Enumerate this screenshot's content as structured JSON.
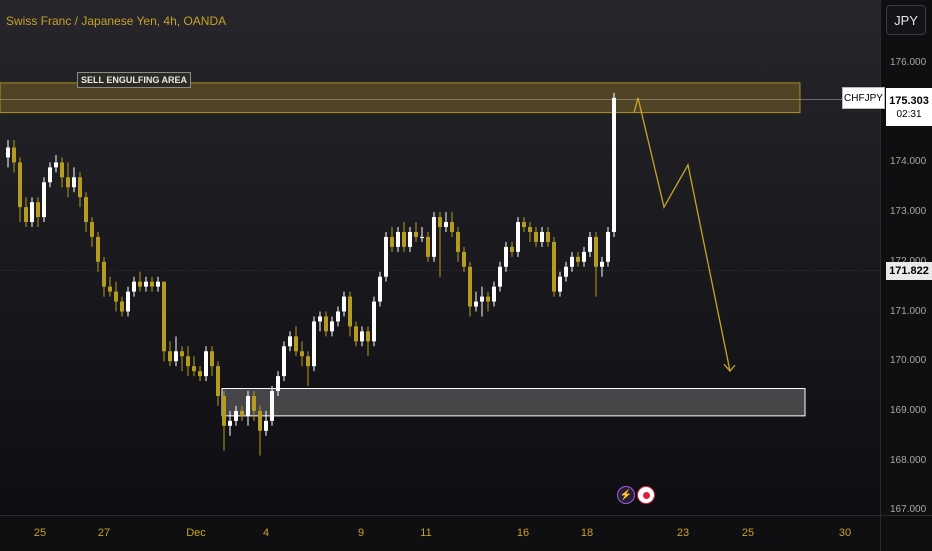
{
  "header": {
    "symbol_title": "Swiss Franc / Japanese Yen, 4h, OANDA",
    "currency_button": "JPY"
  },
  "annotations": {
    "sell_zone_label": "SELL ENGULFING AREA"
  },
  "price_axis": {
    "ticks": [
      {
        "label": "176.000",
        "value": 176
      },
      {
        "label": "175.000",
        "value": 175
      },
      {
        "label": "174.000",
        "value": 174
      },
      {
        "label": "173.000",
        "value": 173
      },
      {
        "label": "172.000",
        "value": 172
      },
      {
        "label": "171.000",
        "value": 171
      },
      {
        "label": "170.000",
        "value": 170
      },
      {
        "label": "169.000",
        "value": 169
      },
      {
        "label": "168.000",
        "value": 168
      },
      {
        "label": "167.000",
        "value": 167
      }
    ]
  },
  "time_axis": {
    "ticks": [
      "25",
      "27",
      "Dec",
      "4",
      "9",
      "11",
      "16",
      "18",
      "23",
      "25",
      "30"
    ]
  },
  "price_marker": {
    "symbol": "CHFJPY",
    "price": "175.303",
    "countdown": "02:31"
  },
  "close_marker": {
    "price": "171.822"
  },
  "colors": {
    "bull": "#ffffff",
    "bear": "#b59b22",
    "projection": "#c9a227",
    "sell_zone": "#c9a227",
    "buy_zone": "#ffffff"
  },
  "events": {
    "flash_icon": "lightning-icon",
    "record_icon": "record-icon"
  },
  "chart_data": {
    "type": "candlestick",
    "symbol": "CHFJPY",
    "timeframe": "4h",
    "ylim": [
      167,
      176.4
    ],
    "x_labels": [
      "25",
      "27",
      "Dec",
      "4",
      "9",
      "11",
      "16",
      "18",
      "23",
      "25",
      "30"
    ],
    "zones": [
      {
        "name": "SELL ENGULFING AREA",
        "low": 175.0,
        "high": 175.6
      },
      {
        "name": "demand",
        "low": 168.9,
        "high": 169.45
      }
    ],
    "projection_path": [
      175.0,
      175.3,
      173.1,
      173.95,
      169.8
    ],
    "last_price": 175.303,
    "close_line": 171.822,
    "candles": [
      [
        174.1,
        174.3,
        174.45,
        173.9
      ],
      [
        174.3,
        174.0,
        174.45,
        173.8
      ],
      [
        174.0,
        173.1,
        174.1,
        172.8
      ],
      [
        173.1,
        172.8,
        173.3,
        172.7
      ],
      [
        172.8,
        173.2,
        173.3,
        172.7
      ],
      [
        173.2,
        172.9,
        173.3,
        172.7
      ],
      [
        172.9,
        173.6,
        173.7,
        172.8
      ],
      [
        173.6,
        173.9,
        174.0,
        173.5
      ],
      [
        173.9,
        174.0,
        174.15,
        173.8
      ],
      [
        174.0,
        173.7,
        174.1,
        173.5
      ],
      [
        173.7,
        173.5,
        174.0,
        173.3
      ],
      [
        173.5,
        173.7,
        173.9,
        173.4
      ],
      [
        173.7,
        173.3,
        173.8,
        173.1
      ],
      [
        173.3,
        172.8,
        173.4,
        172.6
      ],
      [
        172.8,
        172.5,
        172.9,
        172.3
      ],
      [
        172.5,
        172.0,
        172.6,
        171.8
      ],
      [
        172.0,
        171.5,
        172.1,
        171.3
      ],
      [
        171.5,
        171.4,
        171.7,
        171.3
      ],
      [
        171.4,
        171.2,
        171.6,
        171.0
      ],
      [
        171.2,
        171.0,
        171.3,
        170.9
      ],
      [
        171.0,
        171.4,
        171.5,
        170.9
      ],
      [
        171.4,
        171.6,
        171.7,
        171.3
      ],
      [
        171.6,
        171.5,
        171.8,
        171.4
      ],
      [
        171.5,
        171.6,
        171.7,
        171.4
      ],
      [
        171.6,
        171.5,
        171.7,
        171.4
      ],
      [
        171.5,
        171.6,
        171.7,
        171.4
      ],
      [
        171.6,
        170.2,
        171.6,
        170.0
      ],
      [
        170.2,
        170.0,
        170.4,
        169.9
      ],
      [
        170.0,
        170.2,
        170.5,
        169.9
      ],
      [
        170.2,
        170.1,
        170.3,
        169.8
      ],
      [
        170.1,
        169.9,
        170.3,
        169.7
      ],
      [
        169.9,
        169.8,
        170.1,
        169.7
      ],
      [
        169.8,
        169.7,
        169.9,
        169.6
      ],
      [
        169.7,
        170.2,
        170.3,
        169.6
      ],
      [
        170.2,
        169.9,
        170.3,
        169.7
      ],
      [
        169.9,
        169.3,
        170.0,
        169.1
      ],
      [
        169.3,
        168.7,
        169.4,
        168.2
      ],
      [
        168.7,
        168.8,
        169.0,
        168.5
      ],
      [
        168.8,
        169.0,
        169.1,
        168.7
      ],
      [
        169.0,
        168.9,
        169.1,
        168.8
      ],
      [
        168.9,
        169.3,
        169.4,
        168.7
      ],
      [
        169.3,
        169.0,
        169.4,
        168.8
      ],
      [
        169.0,
        168.6,
        169.1,
        168.1
      ],
      [
        168.6,
        168.8,
        169.0,
        168.5
      ],
      [
        168.8,
        169.4,
        169.5,
        168.7
      ],
      [
        169.4,
        169.7,
        169.8,
        169.3
      ],
      [
        169.7,
        170.3,
        170.4,
        169.6
      ],
      [
        170.3,
        170.5,
        170.6,
        170.2
      ],
      [
        170.5,
        170.2,
        170.7,
        170.1
      ],
      [
        170.2,
        170.1,
        170.4,
        169.9
      ],
      [
        170.1,
        169.9,
        170.2,
        169.5
      ],
      [
        169.9,
        170.8,
        170.9,
        169.8
      ],
      [
        170.8,
        170.9,
        171.0,
        170.6
      ],
      [
        170.9,
        170.6,
        171.0,
        170.5
      ],
      [
        170.6,
        170.8,
        170.9,
        170.5
      ],
      [
        170.8,
        171.0,
        171.1,
        170.7
      ],
      [
        171.0,
        171.3,
        171.4,
        170.9
      ],
      [
        171.3,
        170.7,
        171.4,
        170.5
      ],
      [
        170.7,
        170.4,
        170.8,
        170.3
      ],
      [
        170.4,
        170.6,
        170.7,
        170.3
      ],
      [
        170.6,
        170.4,
        170.7,
        170.1
      ],
      [
        170.4,
        171.2,
        171.3,
        170.3
      ],
      [
        171.2,
        171.7,
        171.8,
        171.1
      ],
      [
        171.7,
        172.5,
        172.6,
        171.6
      ],
      [
        172.5,
        172.3,
        172.7,
        172.2
      ],
      [
        172.3,
        172.6,
        172.7,
        172.2
      ],
      [
        172.6,
        172.3,
        172.8,
        172.2
      ],
      [
        172.3,
        172.6,
        172.7,
        172.2
      ],
      [
        172.6,
        172.5,
        172.8,
        172.4
      ],
      [
        172.5,
        172.5,
        172.7,
        172.4
      ],
      [
        172.5,
        172.1,
        172.6,
        172.0
      ],
      [
        172.1,
        172.9,
        173.0,
        172.0
      ],
      [
        172.9,
        172.7,
        173.0,
        171.7
      ],
      [
        172.7,
        172.8,
        173.0,
        172.6
      ],
      [
        172.8,
        172.6,
        173.0,
        172.5
      ],
      [
        172.6,
        172.2,
        172.7,
        172.0
      ],
      [
        172.2,
        171.9,
        172.3,
        171.8
      ],
      [
        171.9,
        171.1,
        172.0,
        170.9
      ],
      [
        171.1,
        171.2,
        171.4,
        171.0
      ],
      [
        171.2,
        171.3,
        171.5,
        170.9
      ],
      [
        171.3,
        171.2,
        171.4,
        171.0
      ],
      [
        171.2,
        171.5,
        171.6,
        171.1
      ],
      [
        171.5,
        171.9,
        172.0,
        171.4
      ],
      [
        171.9,
        172.3,
        172.4,
        171.8
      ],
      [
        172.3,
        172.2,
        172.4,
        172.1
      ],
      [
        172.2,
        172.8,
        172.9,
        172.1
      ],
      [
        172.8,
        172.7,
        172.9,
        172.6
      ],
      [
        172.7,
        172.6,
        172.8,
        172.4
      ],
      [
        172.6,
        172.4,
        172.7,
        172.3
      ],
      [
        172.4,
        172.6,
        172.7,
        172.3
      ],
      [
        172.6,
        172.4,
        172.7,
        172.3
      ],
      [
        172.4,
        171.4,
        172.5,
        171.3
      ],
      [
        171.4,
        171.7,
        171.8,
        171.3
      ],
      [
        171.7,
        171.9,
        172.0,
        171.6
      ],
      [
        171.9,
        172.1,
        172.2,
        171.8
      ],
      [
        172.1,
        172.0,
        172.2,
        171.9
      ],
      [
        172.0,
        172.2,
        172.3,
        171.9
      ],
      [
        172.2,
        172.5,
        172.6,
        172.1
      ],
      [
        172.5,
        171.9,
        172.6,
        171.3
      ],
      [
        171.9,
        172.0,
        172.1,
        171.7
      ],
      [
        172.0,
        172.6,
        172.7,
        171.9
      ],
      [
        172.6,
        175.3,
        175.4,
        172.5
      ]
    ]
  }
}
